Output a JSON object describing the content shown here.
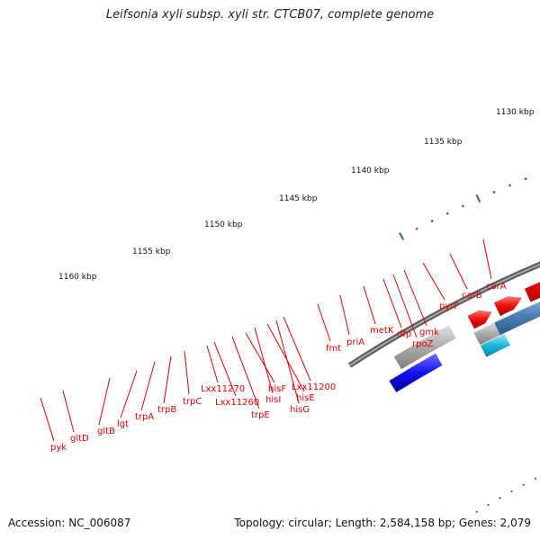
{
  "title": "Leifsonia xyli subsp. xyli str. CTCB07, complete genome",
  "footer": {
    "accession": "Accession: NC_006087",
    "summary": "Topology: circular; Length: 2,584,158 bp; Genes: 2,079"
  },
  "colors": {
    "forward_gene": "#ee1111",
    "reverse_gene": "#4a7fb5",
    "cyan_gene": "#18b8d8",
    "tick": "#2a7a2a",
    "backbone": "#777777",
    "label": "#dd0000"
  },
  "kbp_labels": [
    "1130 kbp",
    "1135 kbp",
    "1140 kbp",
    "1145 kbp",
    "1150 kbp",
    "1155 kbp",
    "1160 kbp"
  ],
  "gene_labels": [
    "pyk",
    "gltD",
    "gltB",
    "lgt",
    "trpA",
    "trpB",
    "trpC",
    "Lxx11270",
    "Lxx11260",
    "trpE",
    "hisF",
    "hisI",
    "hisE",
    "hisG",
    "Lxx11200",
    "fmt",
    "priA",
    "metK",
    "dfp",
    "rpoZ",
    "gmk",
    "pyrF",
    "carB",
    "carA"
  ]
}
